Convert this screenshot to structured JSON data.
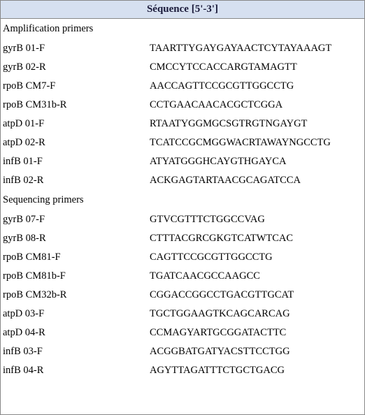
{
  "header": {
    "title": "Séquence [5'-3']"
  },
  "sections": {
    "amp": {
      "heading": "Amplification primers",
      "rows": [
        {
          "name": "gyrB 01-F",
          "seq": "TAARTTYGAYGAYAACTCYTAYAAAGT"
        },
        {
          "name": "gyrB 02-R",
          "seq": "CMCCYTCCACCARGTAMAGTT"
        },
        {
          "name": "rpoB CM7-F",
          "seq": "AACCAGTTCCGCGTTGGCCTG"
        },
        {
          "name": "rpoB CM31b-R",
          "seq": "CCTGAACAACACGCTCGGA"
        },
        {
          "name": "atpD 01-F",
          "seq": "RTAATYGGMGCSGTRGTNGAYGT"
        },
        {
          "name": "atpD 02-R",
          "seq": "TCATCCGCMGGWACRTAWAYNGCCTG"
        },
        {
          "name": "infB 01-F",
          "seq": "ATYATGGGHCAYGTHGAYCA"
        },
        {
          "name": "infB 02-R",
          "seq": "ACKGAGTARTAACGCAGATCCA"
        }
      ]
    },
    "seq": {
      "heading": "Sequencing primers",
      "rows": [
        {
          "name": "gyrB 07-F",
          "seq": "GTVCGTTTCTGGCCVAG"
        },
        {
          "name": "gyrB 08-R",
          "seq": "CTTTACGRCGKGTCATWTCAC"
        },
        {
          "name": "rpoB CM81-F",
          "seq": "CAGTTCCGCGTTGGCCTG"
        },
        {
          "name": "rpoB CM81b-F",
          "seq": "TGATCAACGCCAAGCC"
        },
        {
          "name": "rpoB CM32b-R",
          "seq": "CGGACCGGCCTGACGTTGCAT"
        },
        {
          "name": "atpD 03-F",
          "seq": "TGCTGGAAGTKCAGCARCAG"
        },
        {
          "name": "atpD 04-R",
          "seq": "CCMAGYARTGCGGATACTTC"
        },
        {
          "name": "infB 03-F",
          "seq": "ACGGBATGATYACSTTCCTGG"
        },
        {
          "name": "infB 04-R",
          "seq": "AGYTTAGATTTCTGCTGACG"
        }
      ]
    }
  },
  "style": {
    "header_bg": "#d6e0f0",
    "border_color": "#888888",
    "font_family": "Times New Roman",
    "font_size_header": 15,
    "font_size_body": 14.5,
    "col_name_width": 210
  }
}
